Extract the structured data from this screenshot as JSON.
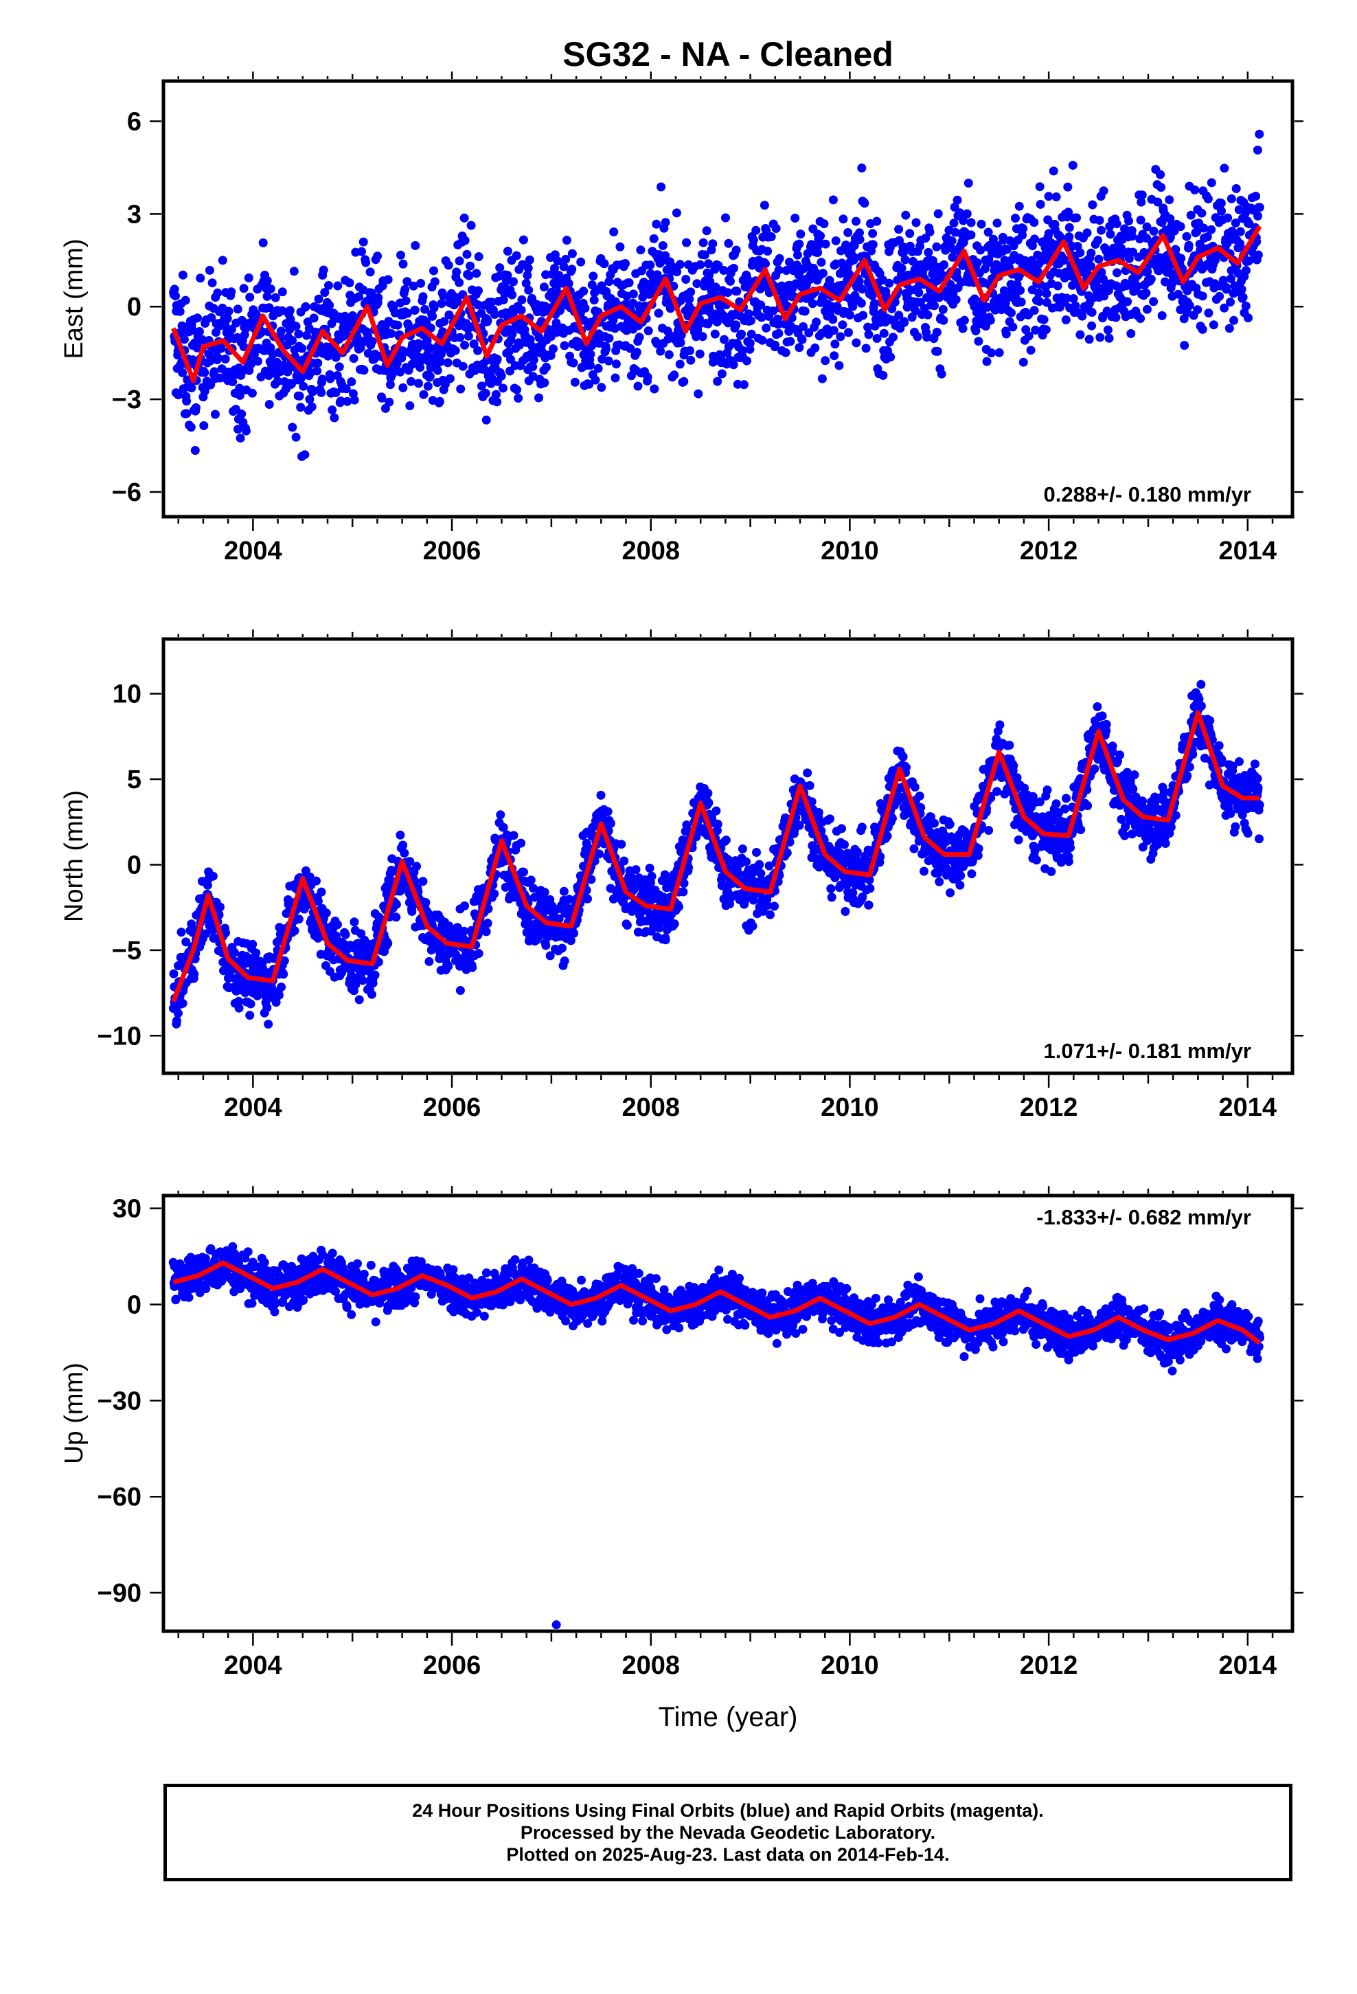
{
  "title": "SG32  - NA - Cleaned",
  "colors": {
    "points": "#0000ff",
    "model": "#ff0000",
    "frame": "#000000"
  },
  "chart_data": [
    {
      "type": "scatter",
      "panel": "east",
      "ylabel": "East (mm)",
      "xlabel": "",
      "xlim": [
        2003.1,
        2014.45
      ],
      "ylim": [
        -6.8,
        7.3
      ],
      "xticks": [
        "2004",
        "2006",
        "2008",
        "2010",
        "2012",
        "2014"
      ],
      "yticks": [
        "6",
        "3",
        "0",
        "−3",
        "−6"
      ],
      "ytick_values": [
        6,
        3,
        0,
        -3,
        -6
      ],
      "rate_label": "0.288+/- 0.180 mm/yr",
      "rate_position": "bottom-right",
      "series": [
        {
          "kind": "daily positions (scatter)",
          "x_range": [
            2003.2,
            2014.12
          ],
          "approx_center_start": -2.0,
          "approx_center_end": 1.8,
          "approx_scatter": 1.5
        },
        {
          "kind": "fitted model (line)",
          "x": [
            2003.2,
            2003.4,
            2003.5,
            2003.7,
            2003.9,
            2004.1,
            2004.3,
            2004.5,
            2004.7,
            2004.9,
            2005.15,
            2005.35,
            2005.5,
            2005.7,
            2005.9,
            2006.15,
            2006.35,
            2006.5,
            2006.7,
            2006.9,
            2007.15,
            2007.35,
            2007.5,
            2007.7,
            2007.9,
            2008.15,
            2008.35,
            2008.5,
            2008.7,
            2008.9,
            2009.15,
            2009.35,
            2009.5,
            2009.7,
            2009.9,
            2010.15,
            2010.35,
            2010.5,
            2010.7,
            2010.9,
            2011.15,
            2011.35,
            2011.5,
            2011.7,
            2011.9,
            2012.15,
            2012.35,
            2012.5,
            2012.7,
            2012.9,
            2013.15,
            2013.35,
            2013.5,
            2013.7,
            2013.9,
            2014.12
          ],
          "y": [
            -0.7,
            -2.4,
            -1.3,
            -1.1,
            -1.8,
            -0.3,
            -1.4,
            -2.1,
            -0.8,
            -1.5,
            0.0,
            -1.9,
            -1.0,
            -0.7,
            -1.2,
            0.3,
            -1.6,
            -0.6,
            -0.3,
            -0.8,
            0.6,
            -1.2,
            -0.3,
            0.0,
            -0.5,
            0.9,
            -0.8,
            0.1,
            0.3,
            -0.1,
            1.2,
            -0.4,
            0.4,
            0.6,
            0.2,
            1.5,
            -0.1,
            0.7,
            0.9,
            0.5,
            1.8,
            0.2,
            1.0,
            1.2,
            0.8,
            2.1,
            0.6,
            1.3,
            1.5,
            1.1,
            2.3,
            0.8,
            1.6,
            1.9,
            1.4,
            2.6
          ]
        }
      ]
    },
    {
      "type": "scatter",
      "panel": "north",
      "ylabel": "North (mm)",
      "xlabel": "",
      "xlim": [
        2003.1,
        2014.45
      ],
      "ylim": [
        -12.2,
        13.2
      ],
      "xticks": [
        "2004",
        "2006",
        "2008",
        "2010",
        "2012",
        "2014"
      ],
      "yticks": [
        "10",
        "5",
        "0",
        "−5",
        "−10"
      ],
      "ytick_values": [
        10,
        5,
        0,
        -5,
        -10
      ],
      "rate_label": "1.071+/- 0.181 mm/yr",
      "rate_position": "bottom-right",
      "series": [
        {
          "kind": "daily positions (scatter)",
          "x_range": [
            2003.2,
            2014.12
          ],
          "approx_center_start": -6.0,
          "approx_center_end": 4.0,
          "approx_scatter": 1.3
        },
        {
          "kind": "fitted model (line)",
          "x": [
            2003.2,
            2003.4,
            2003.55,
            2003.75,
            2003.95,
            2004.2,
            2004.5,
            2004.75,
            2004.95,
            2005.2,
            2005.5,
            2005.75,
            2005.95,
            2006.2,
            2006.5,
            2006.75,
            2006.95,
            2007.2,
            2007.5,
            2007.75,
            2007.95,
            2008.2,
            2008.5,
            2008.75,
            2008.95,
            2009.2,
            2009.5,
            2009.75,
            2009.95,
            2010.2,
            2010.5,
            2010.75,
            2010.95,
            2011.2,
            2011.5,
            2011.75,
            2011.95,
            2012.2,
            2012.5,
            2012.75,
            2012.95,
            2013.2,
            2013.5,
            2013.75,
            2013.95,
            2014.12
          ],
          "y": [
            -8.0,
            -5.0,
            -1.8,
            -5.5,
            -6.6,
            -6.8,
            -0.8,
            -4.6,
            -5.6,
            -5.8,
            0.2,
            -3.6,
            -4.6,
            -4.8,
            1.4,
            -2.4,
            -3.4,
            -3.6,
            2.4,
            -1.6,
            -2.4,
            -2.6,
            3.6,
            -0.4,
            -1.4,
            -1.6,
            4.6,
            0.6,
            -0.4,
            -0.6,
            5.6,
            1.6,
            0.6,
            0.6,
            6.6,
            2.8,
            1.8,
            1.7,
            7.8,
            3.8,
            2.8,
            2.6,
            8.9,
            4.6,
            3.9,
            3.9
          ]
        }
      ]
    },
    {
      "type": "scatter",
      "panel": "up",
      "ylabel": "Up (mm)",
      "xlabel": "Time (year)",
      "xlim": [
        2003.1,
        2014.45
      ],
      "ylim": [
        -102,
        34
      ],
      "xticks": [
        "2004",
        "2006",
        "2008",
        "2010",
        "2012",
        "2014"
      ],
      "yticks": [
        "30",
        "0",
        "−30",
        "−60",
        "−90"
      ],
      "ytick_values": [
        30,
        0,
        -30,
        -60,
        -90
      ],
      "rate_label": "-1.833+/- 0.682 mm/yr",
      "rate_position": "top-right",
      "series": [
        {
          "kind": "daily positions (scatter)",
          "x_range": [
            2003.2,
            2014.12
          ],
          "approx_center_start": 10.0,
          "approx_center_end": -9.0,
          "approx_scatter": 4.5,
          "outlier": [
            2007.05,
            -100
          ]
        },
        {
          "kind": "fitted model (line)",
          "x": [
            2003.2,
            2003.45,
            2003.7,
            2003.95,
            2004.2,
            2004.45,
            2004.7,
            2004.95,
            2005.2,
            2005.45,
            2005.7,
            2005.95,
            2006.2,
            2006.45,
            2006.7,
            2006.95,
            2007.2,
            2007.45,
            2007.7,
            2007.95,
            2008.2,
            2008.45,
            2008.7,
            2008.95,
            2009.2,
            2009.45,
            2009.7,
            2009.95,
            2010.2,
            2010.45,
            2010.7,
            2010.95,
            2011.2,
            2011.45,
            2011.7,
            2011.95,
            2012.2,
            2012.45,
            2012.7,
            2012.95,
            2013.2,
            2013.45,
            2013.7,
            2013.95,
            2014.12
          ],
          "y": [
            7,
            9,
            13,
            9,
            5,
            7,
            11,
            7,
            3,
            5,
            9,
            6,
            2,
            4,
            8,
            4,
            0,
            2,
            6,
            2,
            -2,
            0,
            4,
            0,
            -4,
            -2,
            2,
            -2,
            -6,
            -4,
            0,
            -4,
            -8,
            -6,
            -2,
            -6,
            -10,
            -8,
            -4,
            -8,
            -11,
            -9,
            -5,
            -8,
            -12
          ]
        }
      ]
    }
  ],
  "footer": {
    "line1": "24 Hour Positions Using Final Orbits (blue) and Rapid Orbits (magenta).",
    "line2": "Processed by the Nevada Geodetic Laboratory.",
    "line3": "Plotted on 2025-Aug-23. Last data on 2014-Feb-14."
  }
}
